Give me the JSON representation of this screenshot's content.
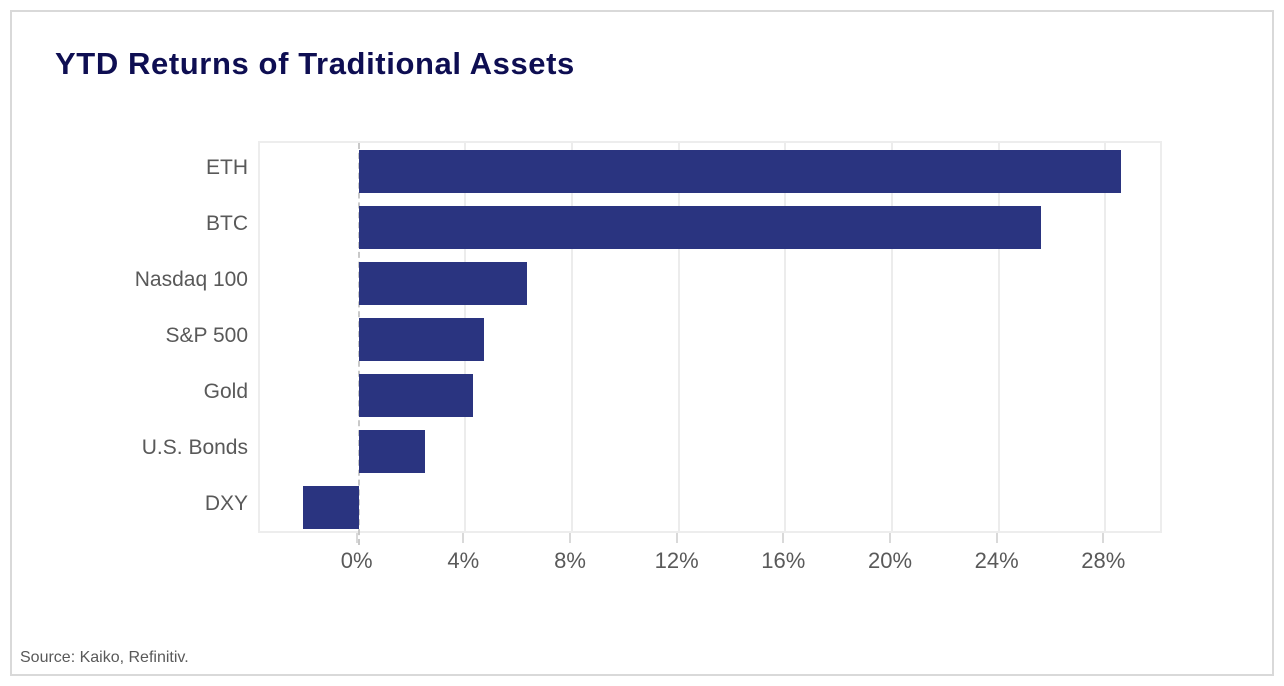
{
  "title": "YTD Returns of Traditional Assets",
  "source_note": "Source: Kaiko, Refinitiv.",
  "colors": {
    "bar": "#2a3480",
    "title": "#0e0e52",
    "axis_text": "#595959",
    "gridline": "#ececec",
    "zero_line": "#c9c9c9",
    "plot_border": "#ededed",
    "card_border": "#d9d9d9",
    "background": "#ffffff"
  },
  "chart_data": {
    "type": "bar",
    "orientation": "horizontal",
    "title": "YTD Returns of Traditional Assets",
    "categories": [
      "ETH",
      "BTC",
      "Nasdaq 100",
      "S&P 500",
      "Gold",
      "U.S. Bonds",
      "DXY"
    ],
    "values": [
      28.6,
      25.6,
      6.3,
      4.7,
      4.3,
      2.5,
      -2.1
    ],
    "unit": "%",
    "xlabel": "",
    "ylabel": "",
    "xlim": [
      -3.7,
      30.2
    ],
    "xticks": [
      0,
      4,
      8,
      12,
      16,
      20,
      24,
      28
    ],
    "xtick_labels": [
      "0%",
      "4%",
      "8%",
      "12%",
      "16%",
      "20%",
      "24%",
      "28%"
    ],
    "grid": true,
    "zero_line_style": "dashed",
    "legend": false
  }
}
